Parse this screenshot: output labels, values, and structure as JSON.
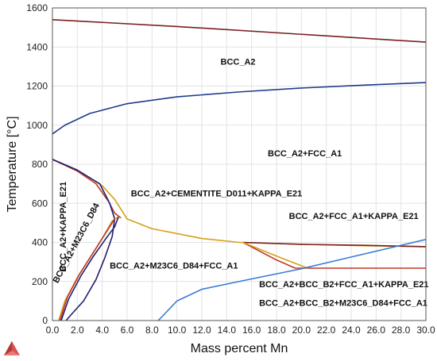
{
  "chart_data": {
    "type": "line",
    "xlabel": "Mass percent Mn",
    "ylabel": "Temperature [°C]",
    "xlim": [
      0,
      30
    ],
    "ylim": [
      0,
      1600
    ],
    "x_ticks": [
      "0.0",
      "2.0",
      "4.0",
      "6.0",
      "8.0",
      "10.0",
      "12.0",
      "14.0",
      "16.0",
      "18.0",
      "20.0",
      "22.0",
      "24.0",
      "26.0",
      "28.0",
      "30.0"
    ],
    "y_ticks": [
      "0",
      "200",
      "400",
      "600",
      "800",
      "1000",
      "1200",
      "1400",
      "1600"
    ],
    "grid": true,
    "series": [
      {
        "color": "#7a1f1f",
        "points": [
          [
            0,
            1540
          ],
          [
            10,
            1505
          ],
          [
            20,
            1465
          ],
          [
            30,
            1425
          ]
        ]
      },
      {
        "color": "#1f3a8a",
        "points": [
          [
            0,
            955
          ],
          [
            1,
            1000
          ],
          [
            3,
            1060
          ],
          [
            6,
            1110
          ],
          [
            10,
            1145
          ],
          [
            15,
            1170
          ],
          [
            20,
            1190
          ],
          [
            25,
            1205
          ],
          [
            30,
            1218
          ]
        ]
      },
      {
        "color": "#d4a017",
        "points": [
          [
            0,
            825
          ],
          [
            2,
            770
          ],
          [
            4,
            690
          ],
          [
            5,
            620
          ],
          [
            5.6,
            560
          ],
          [
            6,
            520
          ],
          [
            8,
            470
          ],
          [
            12,
            420
          ],
          [
            15,
            400
          ],
          [
            20,
            390
          ],
          [
            25,
            383
          ],
          [
            30,
            378
          ]
        ]
      },
      {
        "color": "#c0392b",
        "points": [
          [
            0,
            825
          ],
          [
            2,
            765
          ],
          [
            3.5,
            700
          ],
          [
            4.5,
            610
          ],
          [
            5,
            550
          ],
          [
            5.5,
            525
          ]
        ]
      },
      {
        "color": "#c0392b",
        "points": [
          [
            15.3,
            400
          ],
          [
            18,
            310
          ],
          [
            19.5,
            268
          ]
        ]
      },
      {
        "color": "#7a1f1f",
        "points": [
          [
            15.3,
            400
          ],
          [
            20,
            390
          ],
          [
            25,
            385
          ],
          [
            30,
            378
          ]
        ]
      },
      {
        "color": "#c0392b",
        "points": [
          [
            19.5,
            268
          ],
          [
            25,
            268
          ],
          [
            30,
            268
          ]
        ]
      },
      {
        "color": "#d4a017",
        "points": [
          [
            15.3,
            400
          ],
          [
            18,
            330
          ],
          [
            20.5,
            268
          ]
        ]
      },
      {
        "color": "#1f1f6e",
        "points": [
          [
            0,
            825
          ],
          [
            2,
            770
          ],
          [
            3.8,
            700
          ],
          [
            4.6,
            600
          ],
          [
            5,
            520
          ],
          [
            4.8,
            430
          ],
          [
            4.2,
            320
          ],
          [
            3.5,
            210
          ],
          [
            2.5,
            100
          ],
          [
            1.5,
            30
          ],
          [
            1.1,
            0
          ]
        ]
      },
      {
        "color": "#d4a017",
        "points": [
          [
            0.5,
            0
          ],
          [
            1,
            100
          ],
          [
            2,
            220
          ],
          [
            3,
            320
          ],
          [
            4,
            420
          ],
          [
            4.8,
            510
          ],
          [
            5.3,
            530
          ]
        ]
      },
      {
        "color": "#c0392b",
        "points": [
          [
            0.6,
            0
          ],
          [
            1.2,
            120
          ],
          [
            2.2,
            240
          ],
          [
            3.2,
            340
          ],
          [
            4.2,
            440
          ],
          [
            5,
            520
          ]
        ]
      },
      {
        "color": "#1f1f6e",
        "points": [
          [
            0.7,
            0
          ],
          [
            1.3,
            110
          ],
          [
            2.3,
            230
          ],
          [
            3.3,
            330
          ],
          [
            4.3,
            420
          ],
          [
            5,
            480
          ],
          [
            5.3,
            530
          ]
        ]
      },
      {
        "color": "#3a7bd5",
        "points": [
          [
            8.5,
            0
          ],
          [
            10,
            100
          ],
          [
            12,
            160
          ],
          [
            15,
            200
          ],
          [
            20,
            265
          ],
          [
            25,
            340
          ],
          [
            30,
            415
          ]
        ]
      }
    ],
    "annotations": [
      {
        "text": "BCC_A2",
        "x": 13.5,
        "y": 1310
      },
      {
        "text": "BCC_A2+FCC_A1",
        "x": 17.3,
        "y": 840
      },
      {
        "text": "BCC_A2+CEMENTITE_D011+KAPPA_E21",
        "x": 6.3,
        "y": 635
      },
      {
        "text": "BCC_A2+FCC_A1+KAPPA_E21",
        "x": 19.0,
        "y": 520
      },
      {
        "text": "BCC_A2+M23C6_D84+FCC_A1",
        "x": 4.6,
        "y": 265
      },
      {
        "text": "BCC_A2+BCC_B2+FCC_A1+KAPPA_E21",
        "x": 16.6,
        "y": 170
      },
      {
        "text": "BCC_A2+BCC_B2+M23C6_D84+FCC_A1",
        "x": 16.6,
        "y": 75
      },
      {
        "text": "BCC_A2+KAPPA_E21",
        "x": 1.1,
        "y": 480,
        "rotate": -90
      },
      {
        "text": "BCC_A2+M23C6_D84",
        "x": 2.1,
        "y": 390,
        "rotate": -62
      }
    ]
  },
  "logo": {
    "name": "Thermo-Calc triangle logo",
    "color": "#c0392b"
  }
}
